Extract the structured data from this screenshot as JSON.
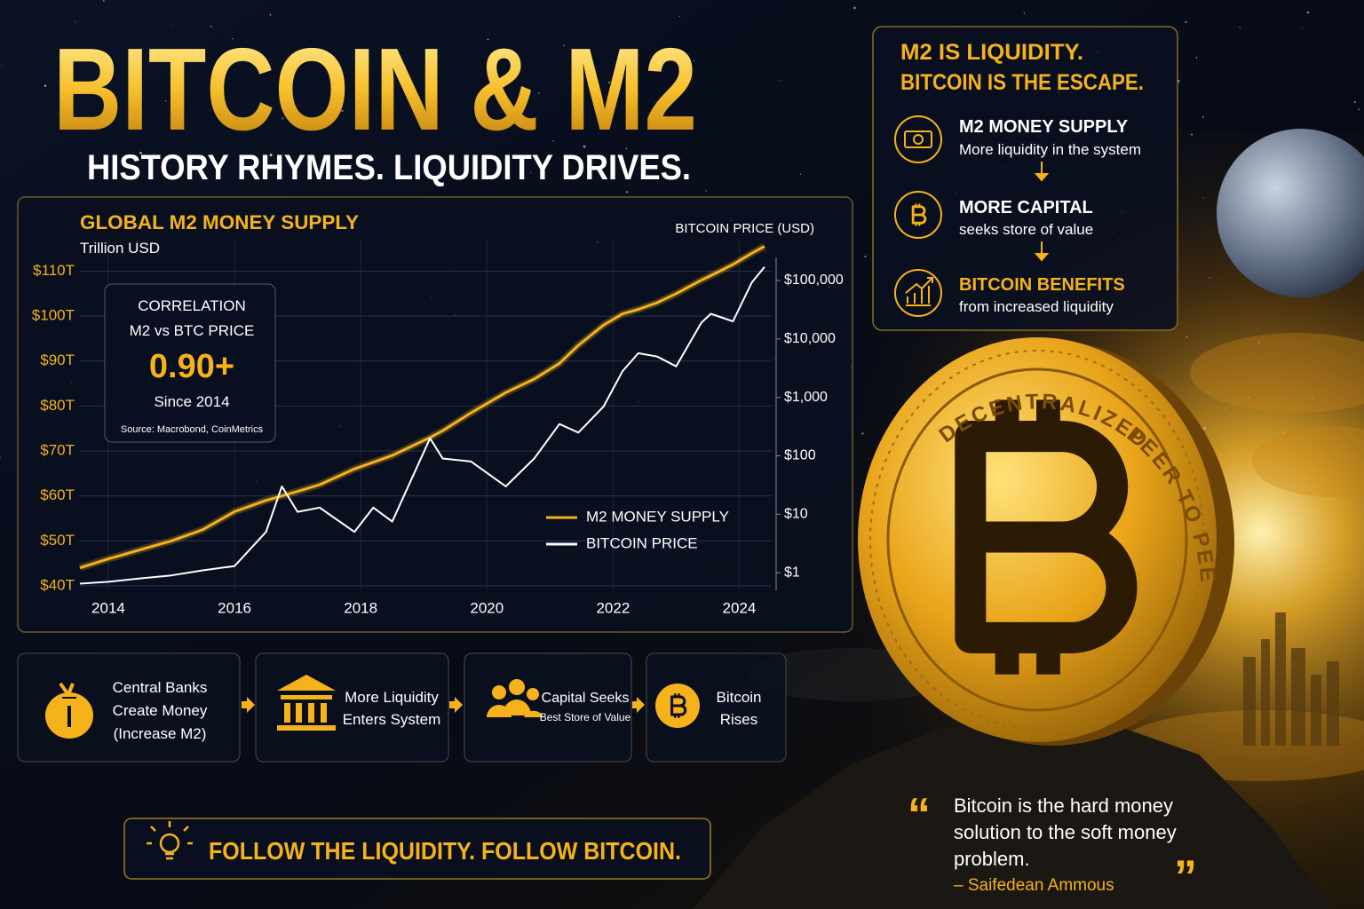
{
  "header": {
    "title": "BITCOIN & M2",
    "subtitle": "HISTORY RHYMES. LIQUIDITY DRIVES."
  },
  "chart_data": {
    "type": "line",
    "title": "GLOBAL M2 MONEY SUPPLY",
    "ylabel": "Trillion USD",
    "y2label": "BITCOIN PRICE (USD)",
    "x": [
      2013.55,
      2014,
      2014.5,
      2015,
      2015.5,
      2016,
      2016.5,
      2016.75,
      2017,
      2017.35,
      2017.9,
      2018.2,
      2018.5,
      2019.1,
      2019.3,
      2019.75,
      2020.3,
      2020.75,
      2021.15,
      2021.45,
      2021.85,
      2022.15,
      2022.4,
      2022.7,
      2023,
      2023.4,
      2023.55,
      2023.9,
      2024.2,
      2024.4
    ],
    "xlim": [
      2013.55,
      2024.5
    ],
    "xticks": [
      2014,
      2016,
      2018,
      2020,
      2022,
      2024
    ],
    "ylim": [
      39,
      117
    ],
    "yticks": [
      {
        "value": 40,
        "label": "$40T"
      },
      {
        "value": 50,
        "label": "$50T"
      },
      {
        "value": 60,
        "label": "$60T"
      },
      {
        "value": 70,
        "label": "$70T"
      },
      {
        "value": 80,
        "label": "$80T"
      },
      {
        "value": 90,
        "label": "$90T"
      },
      {
        "value": 100,
        "label": "$100T"
      },
      {
        "value": 110,
        "label": "$110T"
      }
    ],
    "y2lim": [
      0.5,
      500000
    ],
    "y2log": true,
    "y2ticks": [
      {
        "value": 1,
        "label": "$1"
      },
      {
        "value": 10,
        "label": "$10"
      },
      {
        "value": 100,
        "label": "$100"
      },
      {
        "value": 1000,
        "label": "$1,000"
      },
      {
        "value": 10000,
        "label": "$10,000"
      },
      {
        "value": 100000,
        "label": "$100,000"
      }
    ],
    "grid": true,
    "legend": "lower right",
    "series": [
      {
        "name": "M2 MONEY SUPPLY",
        "color": "#f5b21a",
        "values": [
          44,
          46,
          48,
          50,
          52.5,
          56.5,
          59,
          60,
          61,
          62.5,
          66,
          67.5,
          69,
          73,
          74.5,
          78.5,
          83,
          86,
          89.5,
          93.5,
          98,
          100.5,
          101.5,
          103,
          105,
          108,
          109,
          111.5,
          114,
          115.5
        ]
      },
      {
        "name": "BITCOIN PRICE",
        "color": "#ffffff",
        "axis": "y2",
        "values": [
          0.65,
          0.7,
          0.8,
          0.9,
          1.1,
          1.3,
          5,
          30,
          11,
          13,
          5,
          13,
          7.5,
          200,
          90,
          80,
          30,
          90,
          350,
          250,
          700,
          2800,
          5700,
          5000,
          3400,
          19000,
          27000,
          20000,
          93000,
          170000
        ]
      }
    ]
  },
  "correlation": {
    "heading": "CORRELATION",
    "subheading": "M2 vs BTC PRICE",
    "value": "0.90+",
    "period": "Since 2014",
    "source": "Source: Macrobond, CoinMetrics"
  },
  "flow": {
    "steps": [
      {
        "lines": [
          "Central Banks",
          "Create Money",
          "(Increase M2)"
        ]
      },
      {
        "lines": [
          "More Liquidity",
          "Enters System"
        ]
      },
      {
        "lines": [
          "Capital Seeks",
          "Best Store of Value"
        ]
      },
      {
        "lines": [
          "Bitcoin",
          "Rises"
        ]
      }
    ]
  },
  "banner": "FOLLOW THE LIQUIDITY. FOLLOW BITCOIN.",
  "panel": {
    "heading": [
      "M2 IS LIQUIDITY.",
      "BITCOIN IS THE ESCAPE."
    ],
    "items": [
      {
        "title": "M2 MONEY SUPPLY",
        "text": "More liquidity in the system"
      },
      {
        "title": "MORE CAPITAL",
        "text": "seeks store of value"
      },
      {
        "title": "BITCOIN BENEFITS",
        "text": "from increased liquidity"
      }
    ]
  },
  "coin": {
    "ring": [
      "DECENTRALIZED",
      "PEER TO PEER"
    ]
  },
  "quote": {
    "open": "“",
    "lines": [
      "Bitcoin is the hard money",
      "solution to the soft money",
      "problem."
    ],
    "author": "– Saifedean Ammous",
    "close": "”"
  }
}
